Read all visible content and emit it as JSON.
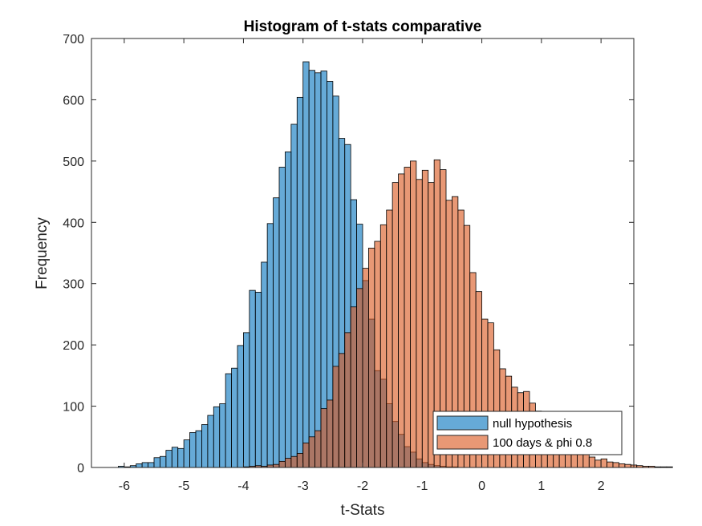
{
  "chart_data": {
    "type": "bar",
    "title": "Histogram of t-stats comparative",
    "xlabel": "t-Stats",
    "ylabel": "Frequency",
    "xlim": [
      -6.55,
      2.55
    ],
    "ylim": [
      0,
      700
    ],
    "xticks": [
      -6,
      -5,
      -4,
      -3,
      -2,
      -1,
      0,
      1,
      2
    ],
    "yticks": [
      0,
      100,
      200,
      300,
      400,
      500,
      600,
      700
    ],
    "grid": false,
    "legend_position": "bottom-right",
    "bin_width": 0.1,
    "series": [
      {
        "name": "null hypothesis",
        "color": "#0072BD",
        "bin_start": -6.1,
        "values": [
          2,
          1,
          3,
          6,
          8,
          8,
          16,
          18,
          28,
          33,
          31,
          45,
          57,
          60,
          70,
          85,
          99,
          104,
          153,
          162,
          199,
          220,
          289,
          286,
          335,
          398,
          440,
          490,
          515,
          560,
          604,
          662,
          648,
          644,
          647,
          630,
          606,
          537,
          527,
          437,
          397,
          305,
          242,
          158,
          144,
          104,
          75,
          54,
          34,
          25,
          14,
          8,
          5,
          3,
          2,
          1,
          1
        ]
      },
      {
        "name": "100 days & phi 0.8",
        "color": "#D95319",
        "bin_start": -4.0,
        "values": [
          1,
          2,
          3,
          2,
          4,
          5,
          10,
          15,
          18,
          23,
          40,
          50,
          60,
          96,
          110,
          165,
          186,
          220,
          262,
          292,
          325,
          358,
          369,
          396,
          420,
          465,
          479,
          490,
          500,
          470,
          485,
          465,
          502,
          486,
          436,
          442,
          420,
          395,
          318,
          287,
          242,
          236,
          192,
          161,
          149,
          131,
          122,
          124,
          105,
          92,
          78,
          70,
          56,
          51,
          44,
          37,
          33,
          26,
          17,
          12,
          14,
          9,
          8,
          6,
          5,
          4,
          3,
          2,
          2,
          1,
          1,
          1
        ]
      }
    ]
  }
}
